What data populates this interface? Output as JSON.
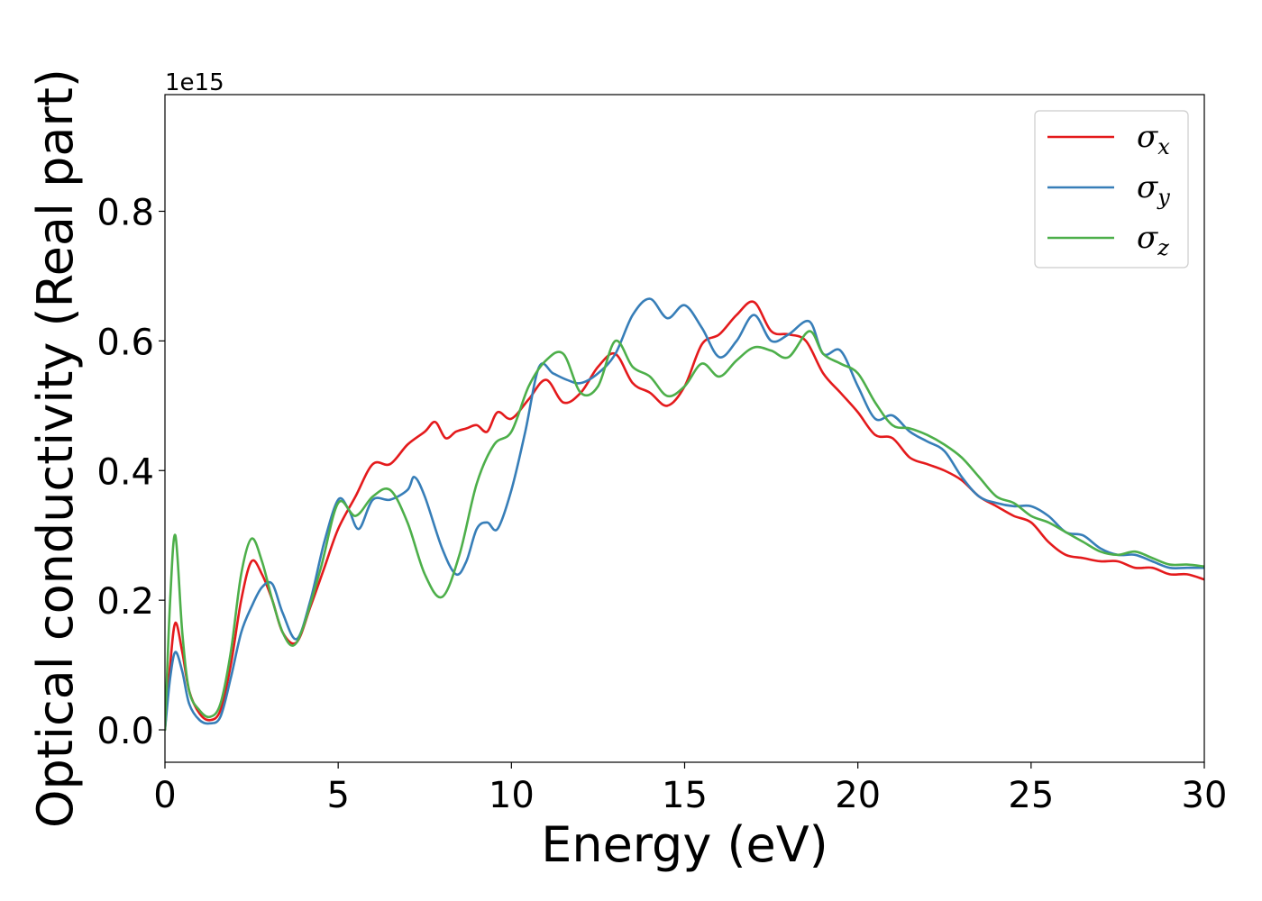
{
  "chart_data": {
    "type": "line",
    "xlabel": "Energy (eV)",
    "ylabel": "Optical conductivity (Real part)",
    "y_offset_text": "1e15",
    "xlim": [
      0,
      30
    ],
    "ylim": [
      -0.05,
      0.98
    ],
    "xticks": [
      0,
      5,
      10,
      15,
      20,
      25,
      30
    ],
    "xtick_labels": [
      "0",
      "5",
      "10",
      "15",
      "20",
      "25",
      "30"
    ],
    "yticks": [
      0.0,
      0.2,
      0.4,
      0.6,
      0.8
    ],
    "ytick_labels": [
      "0.0",
      "0.2",
      "0.4",
      "0.6",
      "0.8"
    ],
    "grid": false,
    "legend_position": "top-right",
    "series": [
      {
        "name": "σx",
        "legend_base": "σ",
        "legend_sub": "x",
        "color": "#e41a1c",
        "x": [
          0,
          0.15,
          0.3,
          0.5,
          0.7,
          1.0,
          1.3,
          1.6,
          1.9,
          2.2,
          2.5,
          2.8,
          3.1,
          3.4,
          3.8,
          4.2,
          4.6,
          5.0,
          5.5,
          6.0,
          6.5,
          7.0,
          7.5,
          7.8,
          8.1,
          8.4,
          8.7,
          9.0,
          9.3,
          9.6,
          10.0,
          10.5,
          11.0,
          11.5,
          12.0,
          12.5,
          13.0,
          13.5,
          14.0,
          14.5,
          15.0,
          15.5,
          16.0,
          16.5,
          17.0,
          17.5,
          18.0,
          18.5,
          19.0,
          19.5,
          20.0,
          20.5,
          21.0,
          21.5,
          22.0,
          22.5,
          23.0,
          23.5,
          24.0,
          24.5,
          25.0,
          25.5,
          26.0,
          26.5,
          27.0,
          27.5,
          28.0,
          28.5,
          29.0,
          29.5,
          30.0
        ],
        "y": [
          0.0,
          0.1,
          0.165,
          0.12,
          0.06,
          0.025,
          0.015,
          0.03,
          0.1,
          0.2,
          0.26,
          0.24,
          0.2,
          0.15,
          0.135,
          0.19,
          0.25,
          0.31,
          0.36,
          0.41,
          0.41,
          0.44,
          0.46,
          0.475,
          0.45,
          0.46,
          0.465,
          0.47,
          0.46,
          0.49,
          0.48,
          0.51,
          0.54,
          0.505,
          0.52,
          0.56,
          0.58,
          0.535,
          0.52,
          0.5,
          0.53,
          0.595,
          0.61,
          0.64,
          0.66,
          0.615,
          0.61,
          0.6,
          0.55,
          0.52,
          0.49,
          0.455,
          0.45,
          0.42,
          0.41,
          0.4,
          0.385,
          0.36,
          0.345,
          0.33,
          0.32,
          0.29,
          0.27,
          0.265,
          0.26,
          0.26,
          0.25,
          0.25,
          0.24,
          0.24,
          0.232
        ]
      },
      {
        "name": "σy",
        "legend_base": "σ",
        "legend_sub": "y",
        "color": "#377eb8",
        "x": [
          0,
          0.15,
          0.3,
          0.5,
          0.7,
          1.0,
          1.3,
          1.6,
          1.9,
          2.2,
          2.5,
          2.8,
          3.1,
          3.4,
          3.8,
          4.2,
          4.6,
          5.0,
          5.3,
          5.6,
          6.0,
          6.5,
          7.0,
          7.2,
          7.5,
          8.0,
          8.4,
          8.7,
          9.0,
          9.3,
          9.6,
          10.0,
          10.4,
          10.8,
          11.2,
          11.6,
          12.0,
          12.5,
          13.0,
          13.5,
          14.0,
          14.5,
          15.0,
          15.5,
          16.0,
          16.5,
          17.0,
          17.5,
          18.0,
          18.6,
          19.0,
          19.5,
          20.0,
          20.5,
          21.0,
          21.5,
          22.0,
          22.5,
          23.0,
          23.5,
          24.0,
          24.5,
          25.0,
          25.5,
          26.0,
          26.5,
          27.0,
          27.5,
          28.0,
          28.5,
          29.0,
          29.5,
          30.0
        ],
        "y": [
          0.0,
          0.08,
          0.12,
          0.09,
          0.04,
          0.015,
          0.01,
          0.02,
          0.08,
          0.15,
          0.19,
          0.22,
          0.225,
          0.18,
          0.14,
          0.2,
          0.29,
          0.355,
          0.34,
          0.31,
          0.355,
          0.355,
          0.37,
          0.39,
          0.36,
          0.28,
          0.24,
          0.26,
          0.31,
          0.32,
          0.31,
          0.37,
          0.46,
          0.56,
          0.55,
          0.54,
          0.535,
          0.55,
          0.58,
          0.64,
          0.665,
          0.635,
          0.655,
          0.62,
          0.575,
          0.6,
          0.64,
          0.6,
          0.61,
          0.63,
          0.58,
          0.585,
          0.53,
          0.48,
          0.485,
          0.46,
          0.445,
          0.43,
          0.39,
          0.36,
          0.35,
          0.345,
          0.345,
          0.33,
          0.305,
          0.3,
          0.28,
          0.27,
          0.27,
          0.26,
          0.25,
          0.25,
          0.25
        ]
      },
      {
        "name": "σz",
        "legend_base": "σ",
        "legend_sub": "z",
        "color": "#4daf4a",
        "x": [
          0,
          0.15,
          0.3,
          0.5,
          0.7,
          1.0,
          1.3,
          1.6,
          1.9,
          2.2,
          2.5,
          2.8,
          3.1,
          3.4,
          3.7,
          4.0,
          4.5,
          5.0,
          5.5,
          6.0,
          6.5,
          7.0,
          7.5,
          8.0,
          8.5,
          9.0,
          9.5,
          10.0,
          10.5,
          11.0,
          11.5,
          12.0,
          12.5,
          13.0,
          13.5,
          14.0,
          14.5,
          15.0,
          15.5,
          16.0,
          16.5,
          17.0,
          17.5,
          18.0,
          18.6,
          19.0,
          19.5,
          20.0,
          20.5,
          21.0,
          21.5,
          22.0,
          22.5,
          23.0,
          23.5,
          24.0,
          24.5,
          25.0,
          25.5,
          26.0,
          26.5,
          27.0,
          27.5,
          28.0,
          28.5,
          29.0,
          29.5,
          30.0
        ],
        "y": [
          0.0,
          0.2,
          0.3,
          0.15,
          0.06,
          0.03,
          0.02,
          0.04,
          0.12,
          0.24,
          0.295,
          0.26,
          0.2,
          0.15,
          0.13,
          0.16,
          0.25,
          0.35,
          0.33,
          0.36,
          0.37,
          0.32,
          0.24,
          0.205,
          0.27,
          0.38,
          0.44,
          0.46,
          0.53,
          0.57,
          0.58,
          0.52,
          0.53,
          0.6,
          0.56,
          0.545,
          0.515,
          0.53,
          0.565,
          0.545,
          0.57,
          0.59,
          0.585,
          0.575,
          0.615,
          0.58,
          0.565,
          0.55,
          0.505,
          0.47,
          0.465,
          0.455,
          0.44,
          0.42,
          0.39,
          0.36,
          0.35,
          0.33,
          0.32,
          0.305,
          0.29,
          0.275,
          0.27,
          0.275,
          0.265,
          0.255,
          0.255,
          0.252
        ]
      }
    ]
  }
}
